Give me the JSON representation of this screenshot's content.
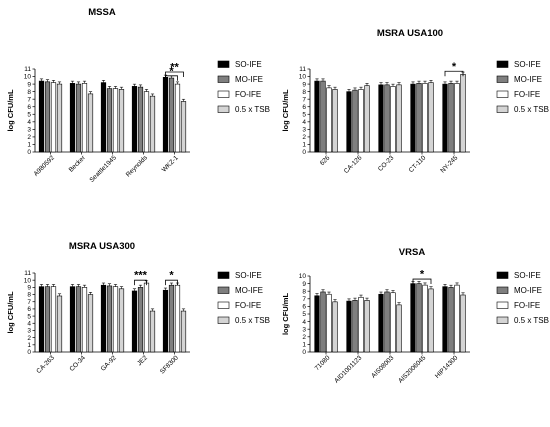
{
  "series_styles": [
    {
      "name": "SO-IFE",
      "fill": "#000000"
    },
    {
      "name": "MO-IFE",
      "fill": "#7f7f7f"
    },
    {
      "name": "FO-IFE",
      "fill": "#ffffff"
    },
    {
      "name": "0.5 x TSB",
      "fill": "#d4d4d4"
    }
  ],
  "chart_data": [
    {
      "type": "bar",
      "title": "MSSA",
      "ylabel": "log CFU/mL",
      "ylim": [
        0,
        11
      ],
      "yticks": [
        0,
        1,
        2,
        3,
        4,
        5,
        6,
        7,
        8,
        9,
        10,
        11
      ],
      "legend": "right",
      "categories": [
        "A980592",
        "Becker",
        "Seattle1945",
        "Reynolds",
        "WKZ-1"
      ],
      "series": [
        {
          "name": "SO-IFE",
          "values": [
            9.4,
            9.1,
            9.2,
            8.7,
            9.9
          ]
        },
        {
          "name": "MO-IFE",
          "values": [
            9.3,
            9.0,
            8.4,
            8.6,
            9.8
          ]
        },
        {
          "name": "FO-IFE",
          "values": [
            9.2,
            9.1,
            8.4,
            8.0,
            9.0
          ]
        },
        {
          "name": "0.5 x TSB",
          "values": [
            9.0,
            7.7,
            8.3,
            7.4,
            6.7
          ]
        }
      ],
      "annotations": [
        {
          "text": "**",
          "category": 4,
          "from": 0,
          "to": 3,
          "level": 10.6
        },
        {
          "text": "*",
          "category": 4,
          "from": 0,
          "to": 2,
          "level": 10.1
        }
      ]
    },
    {
      "type": "bar",
      "title": "MSRA USA100",
      "ylabel": "log CFU/mL",
      "ylim": [
        0,
        11
      ],
      "yticks": [
        0,
        1,
        2,
        3,
        4,
        5,
        6,
        7,
        8,
        9,
        10,
        11
      ],
      "legend": "right",
      "categories": [
        "626",
        "CA-126",
        "CO-23",
        "CT-110",
        "NY-245"
      ],
      "series": [
        {
          "name": "SO-IFE",
          "values": [
            9.4,
            8.0,
            8.9,
            9.0,
            9.0
          ]
        },
        {
          "name": "MO-IFE",
          "values": [
            9.4,
            8.2,
            8.9,
            9.1,
            9.1
          ]
        },
        {
          "name": "FO-IFE",
          "values": [
            8.5,
            8.3,
            8.7,
            9.1,
            9.1
          ]
        },
        {
          "name": "0.5 x TSB",
          "values": [
            8.3,
            8.8,
            8.9,
            9.2,
            10.3
          ]
        }
      ],
      "annotations": [
        {
          "text": "*",
          "category": 4,
          "from": 0,
          "to": 3,
          "level": 10.7
        }
      ]
    },
    {
      "type": "bar",
      "title": "MSRA USA300",
      "ylabel": "log CFU/mL",
      "ylim": [
        0,
        11
      ],
      "yticks": [
        0,
        1,
        2,
        3,
        4,
        5,
        6,
        7,
        8,
        9,
        10,
        11
      ],
      "legend": "right",
      "categories": [
        "CA-263",
        "CO-34",
        "GA-92",
        "JE2",
        "SF8300"
      ],
      "series": [
        {
          "name": "SO-IFE",
          "values": [
            9.1,
            9.1,
            9.3,
            8.5,
            8.6
          ]
        },
        {
          "name": "MO-IFE",
          "values": [
            9.1,
            9.1,
            9.2,
            9.0,
            9.3
          ]
        },
        {
          "name": "FO-IFE",
          "values": [
            9.1,
            9.0,
            9.1,
            9.6,
            9.3
          ]
        },
        {
          "name": "0.5 x TSB",
          "values": [
            7.8,
            8.0,
            8.8,
            5.7,
            5.7
          ]
        }
      ],
      "annotations": [
        {
          "text": "***",
          "category": 3,
          "from": 0,
          "to": 2,
          "level": 10.0
        },
        {
          "text": "*",
          "category": 4,
          "from": 0,
          "to": 2,
          "level": 10.0
        }
      ]
    },
    {
      "type": "bar",
      "title": "VRSA",
      "ylabel": "log CFU/mL",
      "ylim": [
        0,
        10
      ],
      "yticks": [
        0,
        1,
        2,
        3,
        4,
        5,
        6,
        7,
        8,
        9,
        10
      ],
      "legend": "right",
      "categories": [
        "71080",
        "AID1001123",
        "AIS08003",
        "AIS2006045",
        "HIP14300"
      ],
      "series": [
        {
          "name": "SO-IFE",
          "values": [
            7.4,
            6.7,
            7.6,
            9.0,
            8.6
          ]
        },
        {
          "name": "MO-IFE",
          "values": [
            7.9,
            6.8,
            7.9,
            9.0,
            8.5
          ]
        },
        {
          "name": "FO-IFE",
          "values": [
            7.6,
            7.2,
            7.8,
            8.8,
            8.8
          ]
        },
        {
          "name": "0.5 x TSB",
          "values": [
            6.6,
            6.8,
            6.2,
            8.3,
            7.5
          ]
        }
      ],
      "annotations": [
        {
          "text": "*",
          "category": 3,
          "from": 0,
          "to": 3,
          "level": 9.6
        }
      ]
    }
  ]
}
